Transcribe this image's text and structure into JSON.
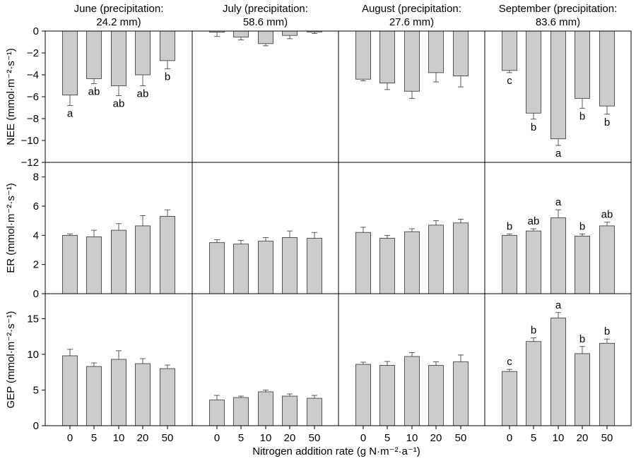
{
  "chart_data": {
    "type": "bar",
    "x_axis_label": "Nitrogen addition rate (g N·m⁻²·a⁻¹)",
    "categories": [
      "0",
      "5",
      "10",
      "20",
      "50"
    ],
    "months": [
      {
        "key": "june",
        "title_line1": "June (precipitation:",
        "title_line2": "24.2 mm)"
      },
      {
        "key": "july",
        "title_line1": "July (precipitation:",
        "title_line2": "58.6 mm)"
      },
      {
        "key": "august",
        "title_line1": "August (precipitation:",
        "title_line2": "27.6 mm)"
      },
      {
        "key": "september",
        "title_line1": "September (precipitation:",
        "title_line2": "83.6 mm)"
      }
    ],
    "rows": [
      {
        "key": "nee",
        "ylabel": "NEE (mmol·m⁻²·s⁻¹)",
        "ylim": [
          -12,
          0
        ],
        "yticks": [
          0,
          -2,
          -4,
          -6,
          -8,
          -10,
          -12
        ],
        "ytick_labels": [
          "0",
          "−2",
          "−4",
          "−6",
          "−8",
          "−10",
          "−12"
        ],
        "panels": [
          {
            "values": [
              -5.85,
              -4.35,
              -5.0,
              -4.0,
              -2.7
            ],
            "errors": [
              0.95,
              0.45,
              0.9,
              1.0,
              0.75
            ],
            "letters": [
              "a",
              "ab",
              "ab",
              "ab",
              "b"
            ]
          },
          {
            "values": [
              -0.1,
              -0.55,
              -1.15,
              -0.4,
              -0.08
            ],
            "errors": [
              0.4,
              0.25,
              0.2,
              0.3,
              0.15
            ],
            "letters": [
              "",
              "",
              "",
              "",
              ""
            ]
          },
          {
            "values": [
              -4.4,
              -4.75,
              -5.5,
              -3.8,
              -4.1
            ],
            "errors": [
              0.15,
              0.6,
              0.65,
              0.85,
              1.0
            ],
            "letters": [
              "",
              "",
              "",
              "",
              ""
            ]
          },
          {
            "values": [
              -3.6,
              -7.5,
              -9.85,
              -6.15,
              -6.85
            ],
            "errors": [
              0.2,
              0.55,
              0.6,
              0.9,
              0.75
            ],
            "letters": [
              "c",
              "b",
              "a",
              "b",
              "b"
            ]
          }
        ]
      },
      {
        "key": "er",
        "ylabel": "ER (mmol·m⁻²·s⁻¹)",
        "ylim": [
          0,
          9
        ],
        "yticks": [
          0,
          2,
          4,
          6,
          8
        ],
        "ytick_labels": [
          "0",
          "2",
          "4",
          "6",
          "8"
        ],
        "panels": [
          {
            "values": [
              4.0,
              3.9,
              4.35,
              4.65,
              5.3
            ],
            "errors": [
              0.1,
              0.45,
              0.45,
              0.7,
              0.45
            ],
            "letters": [
              "",
              "",
              "",
              "",
              ""
            ]
          },
          {
            "values": [
              3.5,
              3.4,
              3.6,
              3.85,
              3.8
            ],
            "errors": [
              0.2,
              0.25,
              0.25,
              0.45,
              0.4
            ],
            "letters": [
              "",
              "",
              "",
              "",
              ""
            ]
          },
          {
            "values": [
              4.2,
              3.8,
              4.25,
              4.7,
              4.85
            ],
            "errors": [
              0.35,
              0.2,
              0.2,
              0.3,
              0.25
            ],
            "letters": [
              "",
              "",
              "",
              "",
              ""
            ]
          },
          {
            "values": [
              4.0,
              4.3,
              5.2,
              3.95,
              4.65
            ],
            "errors": [
              0.1,
              0.15,
              0.55,
              0.15,
              0.25
            ],
            "letters": [
              "b",
              "ab",
              "a",
              "b",
              "ab"
            ]
          }
        ]
      },
      {
        "key": "gep",
        "ylabel": "GEP (mmol·m⁻²·s⁻¹)",
        "ylim": [
          0,
          18.5
        ],
        "yticks": [
          0,
          5,
          10,
          15
        ],
        "ytick_labels": [
          "0",
          "5",
          "10",
          "15"
        ],
        "panels": [
          {
            "values": [
              9.8,
              8.3,
              9.3,
              8.7,
              8.0
            ],
            "errors": [
              0.9,
              0.5,
              1.2,
              0.7,
              0.5
            ],
            "letters": [
              "",
              "",
              "",
              "",
              ""
            ]
          },
          {
            "values": [
              3.6,
              3.95,
              4.75,
              4.15,
              3.85
            ],
            "errors": [
              0.65,
              0.2,
              0.25,
              0.3,
              0.4
            ],
            "letters": [
              "",
              "",
              "",
              "",
              ""
            ]
          },
          {
            "values": [
              8.6,
              8.45,
              9.7,
              8.45,
              8.95
            ],
            "errors": [
              0.3,
              0.55,
              0.55,
              0.5,
              0.95
            ],
            "letters": [
              "",
              "",
              "",
              "",
              ""
            ]
          },
          {
            "values": [
              7.6,
              11.8,
              15.1,
              10.1,
              11.55
            ],
            "errors": [
              0.3,
              0.5,
              0.75,
              1.0,
              0.6
            ],
            "letters": [
              "c",
              "b",
              "a",
              "b",
              "b"
            ]
          }
        ]
      }
    ]
  }
}
